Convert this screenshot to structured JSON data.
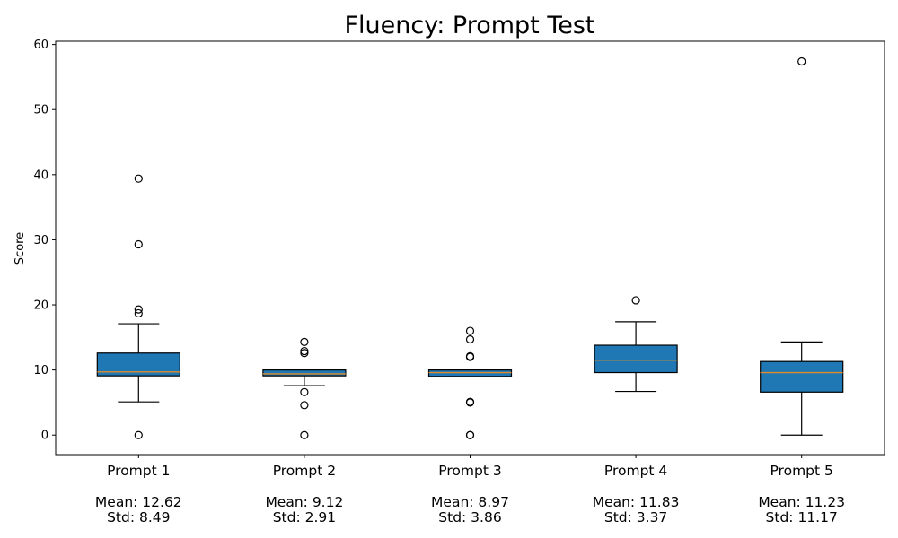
{
  "chart_data": {
    "type": "box",
    "title": "Fluency: Prompt Test",
    "ylabel": "Score",
    "ylim": [
      -3,
      60.5
    ],
    "yticks": [
      0,
      10,
      20,
      30,
      40,
      50,
      60
    ],
    "grid": false,
    "box_color": "#1f77b4",
    "median_color": "#e08a2a",
    "categories": [
      {
        "name": "Prompt 1",
        "mean_label": "Mean: 12.62",
        "std_label": "Std: 8.49",
        "whisker_low": 5.1,
        "q1": 9.1,
        "median": 9.7,
        "q3": 12.6,
        "whisker_high": 17.1,
        "outliers": [
          0,
          18.7,
          19.3,
          29.3,
          39.4
        ]
      },
      {
        "name": "Prompt 2",
        "mean_label": "Mean: 9.12",
        "std_label": "Std: 2.91",
        "whisker_low": 7.6,
        "q1": 9.1,
        "median": 9.4,
        "q3": 10.0,
        "whisker_high": 10.0,
        "outliers": [
          0,
          4.6,
          6.6,
          12.6,
          12.9,
          14.3
        ]
      },
      {
        "name": "Prompt 3",
        "mean_label": "Mean: 8.97",
        "std_label": "Std: 3.86",
        "whisker_low": 9.0,
        "q1": 9.0,
        "median": 9.6,
        "q3": 10.0,
        "whisker_high": 10.0,
        "outliers": [
          0,
          0,
          5.0,
          5.1,
          12.0,
          12.1,
          14.7,
          16.0
        ]
      },
      {
        "name": "Prompt 4",
        "mean_label": "Mean: 11.83",
        "std_label": "Std: 3.37",
        "whisker_low": 6.7,
        "q1": 9.6,
        "median": 11.5,
        "q3": 13.8,
        "whisker_high": 17.4,
        "outliers": [
          20.7
        ]
      },
      {
        "name": "Prompt 5",
        "mean_label": "Mean: 11.23",
        "std_label": "Std: 11.17",
        "whisker_low": 0,
        "q1": 6.6,
        "median": 9.6,
        "q3": 11.3,
        "whisker_high": 14.3,
        "outliers": [
          57.4
        ]
      }
    ]
  }
}
